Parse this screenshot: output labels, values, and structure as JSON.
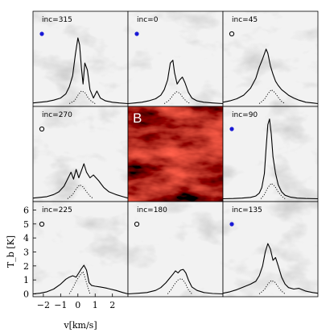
{
  "chart_data": {
    "type": "line",
    "grid": false,
    "layout": "3x3 panel grid",
    "xlabel": "v[km/s]",
    "ylabel": "T_b [K]",
    "xlim": [
      -2.6,
      2.9
    ],
    "ylim": [
      -0.2,
      6.6
    ],
    "xticks": [
      -2,
      -1,
      0,
      1,
      2
    ],
    "yticks": [
      0,
      1,
      2,
      3,
      4,
      5,
      6
    ],
    "colors": {
      "solid": "#000000",
      "dotted": "#000000",
      "filled_marker": "#1a1ad6",
      "open_marker": "#000000",
      "center_panel": "#8b0a05"
    },
    "panels": [
      {
        "label": "inc=315",
        "marker": "filled",
        "solid": {
          "x": [
            -2.6,
            -2.2,
            -1.8,
            -1.4,
            -1.0,
            -0.7,
            -0.5,
            -0.3,
            -0.15,
            0.0,
            0.1,
            0.2,
            0.3,
            0.4,
            0.55,
            0.7,
            0.9,
            1.1,
            1.3,
            1.6,
            2.0,
            2.4,
            2.9
          ],
          "y": [
            0.05,
            0.1,
            0.15,
            0.25,
            0.4,
            0.7,
            1.2,
            2.0,
            3.5,
            4.7,
            4.2,
            2.6,
            1.4,
            2.9,
            2.4,
            1.0,
            0.4,
            0.9,
            0.4,
            0.2,
            0.1,
            0.05,
            0.0
          ]
        },
        "dotted": {
          "x": [
            -0.5,
            -0.2,
            0.0,
            0.2,
            0.4,
            0.6,
            0.8,
            1.0
          ],
          "y": [
            0.0,
            0.2,
            0.6,
            0.9,
            0.8,
            0.4,
            0.15,
            0.0
          ]
        }
      },
      {
        "label": "inc=0",
        "marker": "filled",
        "solid": {
          "x": [
            -2.6,
            -2.2,
            -1.8,
            -1.4,
            -1.0,
            -0.7,
            -0.5,
            -0.3,
            -0.15,
            0.0,
            0.1,
            0.25,
            0.4,
            0.55,
            0.7,
            0.9,
            1.1,
            1.4,
            1.8,
            2.3,
            2.9
          ],
          "y": [
            0.0,
            0.05,
            0.1,
            0.2,
            0.35,
            0.6,
            1.0,
            1.7,
            2.9,
            3.1,
            2.2,
            1.4,
            1.7,
            1.9,
            1.5,
            0.8,
            0.4,
            0.2,
            0.1,
            0.05,
            0.0
          ]
        },
        "dotted": {
          "x": [
            -0.5,
            -0.2,
            0.0,
            0.2,
            0.4,
            0.6,
            0.8,
            1.0
          ],
          "y": [
            0.0,
            0.25,
            0.6,
            0.85,
            0.75,
            0.4,
            0.15,
            0.0
          ]
        }
      },
      {
        "label": "inc=45",
        "marker": "open",
        "solid": {
          "x": [
            -2.6,
            -2.2,
            -1.8,
            -1.4,
            -1.0,
            -0.7,
            -0.5,
            -0.3,
            -0.1,
            0.0,
            0.15,
            0.3,
            0.45,
            0.6,
            0.8,
            1.0,
            1.2,
            1.5,
            1.8,
            2.2,
            2.6,
            2.9
          ],
          "y": [
            0.1,
            0.2,
            0.35,
            0.6,
            1.1,
            1.8,
            2.6,
            3.2,
            3.9,
            3.6,
            2.7,
            2.1,
            1.6,
            1.3,
            1.0,
            0.8,
            0.6,
            0.4,
            0.25,
            0.1,
            0.05,
            0.0
          ]
        },
        "dotted": {
          "x": [
            -0.5,
            -0.2,
            0.0,
            0.2,
            0.4,
            0.6,
            0.8,
            1.0
          ],
          "y": [
            0.0,
            0.3,
            0.7,
            1.0,
            0.8,
            0.45,
            0.15,
            0.0
          ]
        }
      },
      {
        "label": "inc=270",
        "marker": "open",
        "solid": {
          "x": [
            -2.6,
            -2.2,
            -1.8,
            -1.4,
            -1.1,
            -0.8,
            -0.6,
            -0.4,
            -0.25,
            -0.1,
            0.05,
            0.2,
            0.35,
            0.5,
            0.7,
            0.9,
            1.2,
            1.5,
            1.8,
            2.2,
            2.6,
            2.9
          ],
          "y": [
            0.05,
            0.1,
            0.15,
            0.3,
            0.5,
            0.9,
            1.4,
            1.9,
            1.4,
            2.1,
            1.5,
            2.0,
            2.5,
            1.9,
            1.5,
            1.7,
            1.3,
            0.8,
            0.5,
            0.3,
            0.15,
            0.05
          ]
        },
        "dotted": {
          "x": [
            -0.6,
            -0.3,
            -0.1,
            0.1,
            0.3,
            0.5,
            0.7,
            0.9
          ],
          "y": [
            0.0,
            0.3,
            0.7,
            1.0,
            0.85,
            0.5,
            0.2,
            0.0
          ]
        }
      },
      {
        "label": "B",
        "marker": "none",
        "type": "image"
      },
      {
        "label": "inc=90",
        "marker": "filled",
        "solid": {
          "x": [
            -2.6,
            -2.0,
            -1.5,
            -1.0,
            -0.7,
            -0.5,
            -0.35,
            -0.2,
            -0.1,
            0.0,
            0.1,
            0.2,
            0.3,
            0.45,
            0.6,
            0.8,
            1.0,
            1.3,
            1.7,
            2.2,
            2.9
          ],
          "y": [
            0.0,
            0.02,
            0.05,
            0.1,
            0.2,
            0.4,
            0.8,
            1.8,
            3.6,
            5.3,
            5.7,
            4.6,
            3.0,
            1.8,
            1.0,
            0.5,
            0.25,
            0.12,
            0.05,
            0.02,
            0.0
          ]
        },
        "dotted": {
          "x": [
            -0.4,
            -0.2,
            0.0,
            0.2,
            0.4,
            0.6,
            0.8,
            1.0
          ],
          "y": [
            0.0,
            0.3,
            0.8,
            1.1,
            0.9,
            0.5,
            0.2,
            0.0
          ]
        }
      },
      {
        "label": "inc=225",
        "marker": "open",
        "solid": {
          "x": [
            -2.6,
            -2.2,
            -1.8,
            -1.4,
            -1.0,
            -0.7,
            -0.5,
            -0.3,
            -0.1,
            0.05,
            0.2,
            0.35,
            0.5,
            0.65,
            0.8,
            1.0,
            1.3,
            1.7,
            2.2,
            2.6,
            2.9
          ],
          "y": [
            0.0,
            0.05,
            0.15,
            0.35,
            0.7,
            1.05,
            1.2,
            1.3,
            1.2,
            1.5,
            1.8,
            2.05,
            1.7,
            0.8,
            0.6,
            0.55,
            0.5,
            0.4,
            0.25,
            0.1,
            0.0
          ]
        },
        "dotted": {
          "x": [
            -0.5,
            -0.3,
            -0.1,
            0.1,
            0.3,
            0.5,
            0.7
          ],
          "y": [
            0.0,
            0.4,
            0.9,
            1.3,
            1.6,
            0.8,
            0.0
          ]
        }
      },
      {
        "label": "inc=180",
        "marker": "open",
        "solid": {
          "x": [
            -2.6,
            -2.0,
            -1.5,
            -1.0,
            -0.7,
            -0.4,
            -0.2,
            0.0,
            0.15,
            0.3,
            0.45,
            0.6,
            0.75,
            0.9,
            1.1,
            1.4,
            1.8,
            2.3,
            2.9
          ],
          "y": [
            0.0,
            0.05,
            0.1,
            0.25,
            0.45,
            0.8,
            1.1,
            1.4,
            1.65,
            1.5,
            1.7,
            1.75,
            1.5,
            1.0,
            0.5,
            0.25,
            0.1,
            0.03,
            0.0
          ]
        },
        "dotted": {
          "x": [
            -0.3,
            -0.1,
            0.1,
            0.3,
            0.5,
            0.7,
            0.9,
            1.1
          ],
          "y": [
            0.0,
            0.3,
            0.7,
            1.0,
            1.1,
            0.8,
            0.3,
            0.0
          ]
        }
      },
      {
        "label": "inc=135",
        "marker": "filled",
        "solid": {
          "x": [
            -2.6,
            -2.2,
            -1.8,
            -1.4,
            -1.0,
            -0.7,
            -0.5,
            -0.3,
            -0.15,
            0.0,
            0.15,
            0.3,
            0.45,
            0.6,
            0.8,
            1.0,
            1.2,
            1.5,
            1.8,
            2.2,
            2.6,
            2.9
          ],
          "y": [
            0.05,
            0.15,
            0.3,
            0.5,
            0.7,
            0.9,
            1.3,
            2.0,
            3.0,
            3.6,
            3.2,
            2.4,
            2.6,
            2.0,
            1.2,
            0.7,
            0.45,
            0.35,
            0.4,
            0.2,
            0.1,
            0.05
          ]
        },
        "dotted": {
          "x": [
            -0.5,
            -0.2,
            0.0,
            0.2,
            0.4,
            0.6,
            0.8,
            1.0
          ],
          "y": [
            0.0,
            0.3,
            0.7,
            0.95,
            0.85,
            0.5,
            0.2,
            0.0
          ]
        }
      }
    ]
  }
}
